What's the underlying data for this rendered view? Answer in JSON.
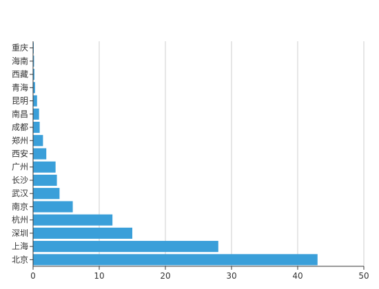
{
  "chart_data": {
    "type": "bar",
    "orientation": "horizontal",
    "categories": [
      "北京",
      "上海",
      "深圳",
      "杭州",
      "南京",
      "武汉",
      "长沙",
      "广州",
      "西安",
      "郑州",
      "成都",
      "南昌",
      "昆明",
      "青海",
      "西藏",
      "海南",
      "重庆"
    ],
    "values": [
      43,
      28,
      15,
      12,
      6,
      4,
      3.6,
      3.4,
      2,
      1.5,
      1,
      0.9,
      0.6,
      0.3,
      0.2,
      0.15,
      0.1
    ],
    "xlim": [
      0,
      50
    ],
    "xticks": [
      0,
      10,
      20,
      30,
      40,
      50
    ],
    "grid": true,
    "colors": {
      "bar": "#3a9fd9",
      "grid": "#cccccc",
      "axis": "#333333"
    }
  }
}
